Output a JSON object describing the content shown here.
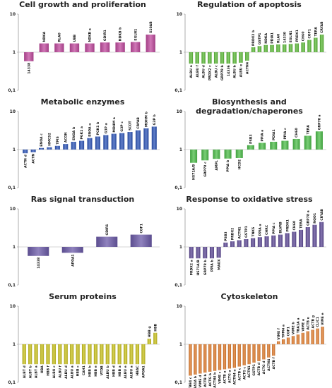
{
  "chart_data": [
    {
      "type": "bar",
      "title": "Cell growth and proliferation",
      "yscale": "log",
      "ylim": [
        0.1,
        10
      ],
      "yticks": [
        "10",
        "1",
        "0,1"
      ],
      "color": "#c04a9e",
      "categories": [
        "14338",
        "NDKA",
        "RLA0",
        "UBB",
        "NDKB a",
        "GDIR1",
        "NDKB b",
        "EGLN1",
        "S10AB"
      ],
      "values": [
        0.58,
        1.7,
        1.7,
        1.7,
        1.7,
        1.8,
        1.8,
        1.85,
        2.9
      ]
    },
    {
      "type": "bar",
      "title": "Regulation of apoptosis",
      "yscale": "log",
      "ylim": [
        0.1,
        10
      ],
      "yticks": [
        "10",
        "1",
        "0,1"
      ],
      "color": "#5dbb3a",
      "categories": [
        "ALBU a",
        "ALBU f",
        "ALBU d",
        "PRDX2 c",
        "ALBU c",
        "GRP78 b",
        "14336",
        "ALBU b",
        "ALBU e",
        "ACTN4",
        "PRDX2 b",
        "GSTP1",
        "NDKA",
        "PDIA1",
        "RLA0",
        "14330",
        "EGLN1",
        "PRDX1",
        "CH60",
        "COF1",
        "TERA",
        "CRYAB"
      ],
      "values": [
        0.5,
        0.5,
        0.5,
        0.5,
        0.5,
        0.5,
        0.5,
        0.5,
        0.53,
        0.6,
        1.35,
        1.45,
        1.55,
        1.55,
        1.6,
        1.6,
        1.65,
        1.7,
        1.8,
        2.1,
        2.4,
        2.9
      ]
    },
    {
      "type": "bar",
      "title": "Metabolic enzymes",
      "yscale": "log",
      "ylim": [
        0.1,
        10
      ],
      "yticks": [
        "10",
        "1",
        "0,1"
      ],
      "color": "#2e55b8",
      "categories": [
        "ACTN d",
        "ACTN",
        "ENOA c",
        "HMCS2",
        "TPIS",
        "ACON",
        "ENOA b",
        "PGK1 a",
        "ENOA a",
        "PGK1 b",
        "G3P a",
        "MDHM a",
        "G3P c",
        "SCOT",
        "CRYAB",
        "MDHM b",
        "G3P b"
      ],
      "values": [
        0.8,
        0.85,
        1.1,
        1.15,
        1.25,
        1.4,
        1.6,
        1.7,
        2.0,
        2.2,
        2.4,
        2.6,
        2.7,
        2.9,
        3.2,
        3.6,
        4.0
      ]
    },
    {
      "type": "bar",
      "title": "Biosynthesis and degradation/chaperones",
      "yscale": "log",
      "ylim": [
        0.1,
        10
      ],
      "yticks": [
        "10",
        "1",
        "0,1"
      ],
      "color": "#4dbd4a",
      "categories": [
        "HS71A/B",
        "GRP78 c",
        "AMPL",
        "PPIA b",
        "HCD2",
        "PSB3",
        "PPIA a",
        "PDIA1",
        "PPIA c",
        "CH60",
        "TERA",
        "GRP78 a"
      ],
      "values": [
        0.45,
        0.52,
        0.57,
        0.58,
        0.6,
        1.3,
        1.5,
        1.6,
        1.7,
        1.9,
        2.3,
        3.0
      ]
    },
    {
      "type": "bar",
      "title": "Ras signal transduction",
      "yscale": "log",
      "ylim": [
        0.1,
        10
      ],
      "yticks": [
        "10",
        "1",
        "0,1"
      ],
      "color": "#6b5aa8",
      "categories": [
        "14338",
        "APOA1",
        "GDIR1",
        "COF1"
      ],
      "values": [
        0.58,
        0.7,
        1.85,
        2.1
      ]
    },
    {
      "type": "bar",
      "title": "Response to oxidative stress",
      "yscale": "log",
      "ylim": [
        0.1,
        10
      ],
      "yticks": [
        "10",
        "1",
        "0,1"
      ],
      "color": "#5e4a96",
      "categories": [
        "PRDX2 a",
        "HS71A/B",
        "GRP78 b",
        "PPIA b",
        "MAOX",
        "PSB3",
        "PRDX2",
        "ACTN1",
        "GSTP1",
        "TNKS",
        "PPIA a",
        "CHRC",
        "PPIA c",
        "BLVRB",
        "PRDX1",
        "CH60",
        "TERA",
        "GRP78 a",
        "NQO1",
        "CRYAB"
      ],
      "values": [
        0.5,
        0.5,
        0.5,
        0.5,
        0.52,
        1.3,
        1.4,
        1.5,
        1.6,
        1.7,
        1.8,
        1.9,
        2.0,
        2.1,
        2.3,
        2.5,
        2.8,
        3.3,
        3.8,
        4.5
      ]
    },
    {
      "type": "bar",
      "title": "Serum proteins",
      "yscale": "log",
      "ylim": [
        0.1,
        10
      ],
      "yticks": [
        "10",
        "1",
        "0,1"
      ],
      "color": "#c9c21c",
      "categories": [
        "ALBT d",
        "ALBT b",
        "ALBT a",
        "HBA",
        "HBB f",
        "ALBU c",
        "ALBU f",
        "ALBU d",
        "ALBU a",
        "HBB c",
        "CAH1",
        "HBB b",
        "HBB e",
        "VTDB",
        "ALBU b",
        "HBB d",
        "HBB a",
        "ALBU e",
        "ALBU a",
        "HBAC",
        "APOA1",
        "HBB g",
        "HBB"
      ],
      "values": [
        0.3,
        0.3,
        0.3,
        0.3,
        0.3,
        0.3,
        0.3,
        0.3,
        0.3,
        0.3,
        0.3,
        0.3,
        0.3,
        0.3,
        0.3,
        0.3,
        0.3,
        0.3,
        0.3,
        0.3,
        0.3,
        1.4,
        2.0
      ]
    },
    {
      "type": "bar",
      "title": "Cytoskeleton",
      "yscale": "log",
      "ylim": [
        0.1,
        10
      ],
      "yticks": [
        "10",
        "1",
        "0,1"
      ],
      "color": "#e07a2a",
      "categories": [
        "TBB4 c",
        "TBA1A b",
        "VIME d",
        "ACTB b",
        "ACTG b",
        "ACTN4 b",
        "VIME c",
        "ACTB a",
        "ACTG a",
        "ACTN4 a",
        "ACTB c",
        "ACTG c",
        "ACTN1",
        "GSTP1",
        "ACTB d",
        "ACTG d",
        "ACTN4",
        "ACTB f",
        "VIME f",
        "TPM4 a",
        "COF1",
        "VIME b",
        "TBA1A a",
        "VIME a",
        "ACTB e",
        "ACTB g",
        "CLIC1",
        "VIME e"
      ],
      "values": [
        0.15,
        0.16,
        0.17,
        0.18,
        0.19,
        0.2,
        0.21,
        0.22,
        0.23,
        0.24,
        0.26,
        0.28,
        0.3,
        0.33,
        0.36,
        0.4,
        0.45,
        0.5,
        1.2,
        1.35,
        1.5,
        1.65,
        1.8,
        2.0,
        2.2,
        2.4,
        2.6,
        2.9
      ]
    }
  ]
}
